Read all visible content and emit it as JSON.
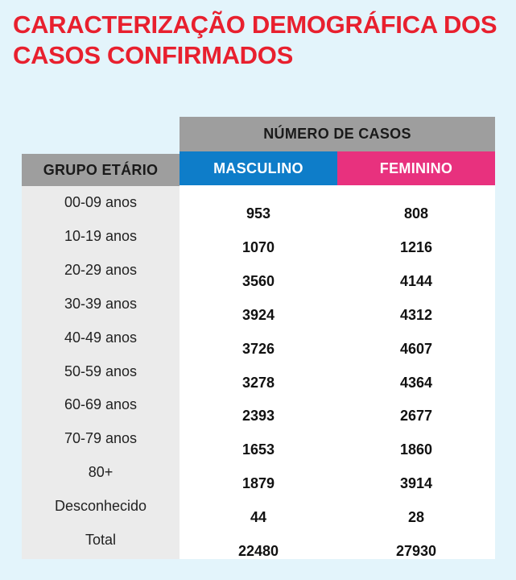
{
  "title": {
    "line1": "CARACTERIZAÇÃO DEMOGRÁFICA DOS",
    "line2": "CASOS CONFIRMADOS"
  },
  "table": {
    "group_header": "NÚMERO DE CASOS",
    "col_age": "GRUPO ETÁRIO",
    "col_male": "MASCULINO",
    "col_female": "FEMININO",
    "colors": {
      "male": "#0e7dc9",
      "female": "#e8317e",
      "header": "#9e9e9e",
      "title": "#e8202e"
    },
    "rows": [
      {
        "age": "00-09 anos",
        "male": "953",
        "female": "808"
      },
      {
        "age": "10-19 anos",
        "male": "1070",
        "female": "1216"
      },
      {
        "age": "20-29 anos",
        "male": "3560",
        "female": "4144"
      },
      {
        "age": "30-39 anos",
        "male": "3924",
        "female": "4312"
      },
      {
        "age": "40-49 anos",
        "male": "3726",
        "female": "4607"
      },
      {
        "age": "50-59 anos",
        "male": "3278",
        "female": "4364"
      },
      {
        "age": "60-69 anos",
        "male": "2393",
        "female": "2677"
      },
      {
        "age": "70-79 anos",
        "male": "1653",
        "female": "1860"
      },
      {
        "age": "80+",
        "male": "1879",
        "female": "3914"
      },
      {
        "age": "Desconhecido",
        "male": "44",
        "female": "28"
      },
      {
        "age": "Total",
        "male": "22480",
        "female": "27930"
      }
    ]
  }
}
